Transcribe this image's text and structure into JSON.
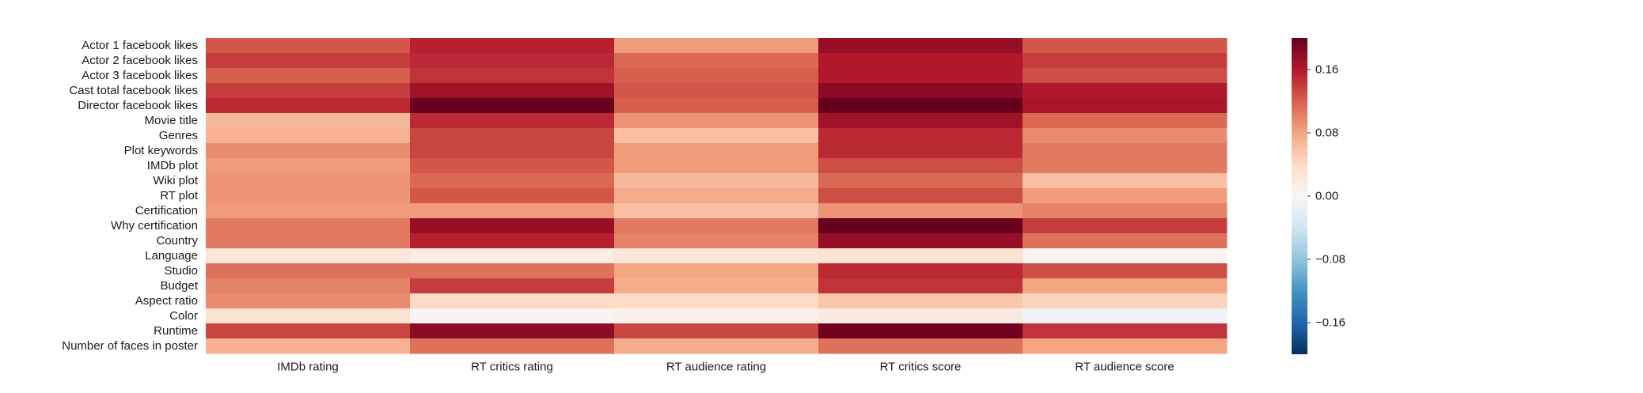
{
  "chart_data": {
    "type": "heatmap",
    "title": "",
    "xlabel": "",
    "ylabel": "",
    "columns": [
      "IMDb rating",
      "RT critics rating",
      "RT audience rating",
      "RT critics score",
      "RT audience score"
    ],
    "rows": [
      "Actor 1 facebook likes",
      "Actor 2 facebook likes",
      "Actor 3 facebook likes",
      "Cast total facebook likes",
      "Director facebook likes",
      "Movie title",
      "Genres",
      "Plot keywords",
      "IMDb plot",
      "Wiki plot",
      "RT plot",
      "Certification",
      "Why certification",
      "Country",
      "Language",
      "Studio",
      "Budget",
      "Aspect ratio",
      "Color",
      "Runtime",
      "Number of faces in poster"
    ],
    "values": [
      [
        0.125,
        0.155,
        0.085,
        0.175,
        0.125
      ],
      [
        0.14,
        0.15,
        0.115,
        0.16,
        0.14
      ],
      [
        0.12,
        0.145,
        0.12,
        0.16,
        0.13
      ],
      [
        0.14,
        0.17,
        0.125,
        0.18,
        0.16
      ],
      [
        0.15,
        0.22,
        0.12,
        0.22,
        0.165
      ],
      [
        0.065,
        0.15,
        0.09,
        0.17,
        0.115
      ],
      [
        0.07,
        0.135,
        0.06,
        0.15,
        0.095
      ],
      [
        0.095,
        0.135,
        0.085,
        0.15,
        0.105
      ],
      [
        0.085,
        0.125,
        0.085,
        0.13,
        0.105
      ],
      [
        0.09,
        0.115,
        0.065,
        0.115,
        0.06
      ],
      [
        0.09,
        0.125,
        0.075,
        0.13,
        0.085
      ],
      [
        0.085,
        0.085,
        0.06,
        0.09,
        0.1
      ],
      [
        0.105,
        0.175,
        0.105,
        0.2,
        0.14
      ],
      [
        0.105,
        0.155,
        0.1,
        0.175,
        0.11
      ],
      [
        0.025,
        0.015,
        0.025,
        0.03,
        0.005
      ],
      [
        0.11,
        0.11,
        0.08,
        0.15,
        0.13
      ],
      [
        0.1,
        0.14,
        0.075,
        0.145,
        0.08
      ],
      [
        0.095,
        0.04,
        0.04,
        0.055,
        0.045
      ],
      [
        0.03,
        0.005,
        0.01,
        0.02,
        -0.01
      ],
      [
        0.135,
        0.18,
        0.135,
        0.195,
        0.145
      ],
      [
        0.07,
        0.11,
        0.075,
        0.11,
        0.08
      ]
    ],
    "colormap": "RdBu_r",
    "vmin": -0.2,
    "vmax": 0.2,
    "colorbar": {
      "ticks": [
        0.16,
        0.08,
        0.0,
        -0.08,
        -0.16
      ],
      "tick_labels": [
        "0.16",
        "0.08",
        "0.00",
        "−0.08",
        "−0.16"
      ]
    },
    "grid": false,
    "legend": "colorbar-right"
  }
}
